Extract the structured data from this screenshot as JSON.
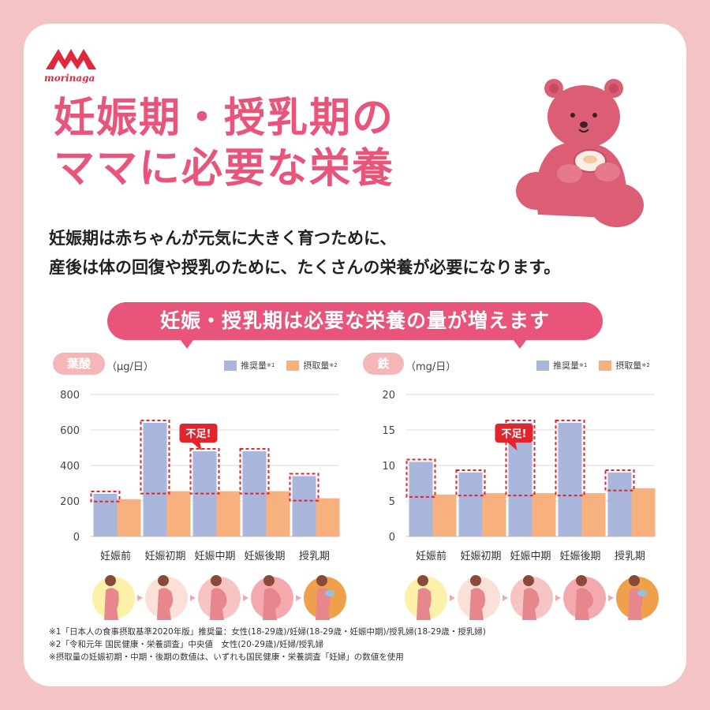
{
  "brand": {
    "name": "morinaga",
    "color": "#e0283c"
  },
  "title": {
    "line1": "妊娠期・授乳期の",
    "line2": "ママに必要な栄養"
  },
  "intro": {
    "line1": "妊娠期は赤ちゃんが元気に大きく育つために、",
    "line2": "産後は体の回復や授乳のために、たくさんの栄養が必要になります。"
  },
  "banner": "妊娠・授乳期は必要な栄養の量が増えます",
  "colors": {
    "accent": "#e9557a",
    "recommended": "#aab6db",
    "intake": "#f7b07e",
    "shortage": "#e2252b"
  },
  "legend": {
    "recommended": "推奨量",
    "recommended_note": "※1",
    "intake": "摂取量",
    "intake_note": "※2"
  },
  "shortage_label": "不足!",
  "stage_icons": [
    "pregnant-woman-early-icon",
    "pregnant-woman-first-trimester-icon",
    "pregnant-woman-mid-icon",
    "pregnant-woman-late-icon",
    "nursing-mother-icon"
  ],
  "chart_data": [
    {
      "type": "bar",
      "title": "葉酸",
      "unit": "（μg/日）",
      "categories": [
        "妊娠前",
        "妊娠初期",
        "妊娠中期",
        "妊娠後期",
        "授乳期"
      ],
      "ylim": [
        0,
        800
      ],
      "yticks": [
        "0",
        "200",
        "400",
        "600",
        "800"
      ],
      "series": [
        {
          "name": "推奨量",
          "values": [
            240,
            640,
            480,
            480,
            340
          ]
        },
        {
          "name": "摂取量",
          "values": [
            210,
            255,
            255,
            255,
            215
          ]
        }
      ],
      "grid": true,
      "legend": "top-right"
    },
    {
      "type": "bar",
      "title": "鉄",
      "unit": "（mg/日）",
      "categories": [
        "妊娠前",
        "妊娠初期",
        "妊娠中期",
        "妊娠後期",
        "授乳期"
      ],
      "ylim": [
        0,
        20
      ],
      "yticks": [
        "0",
        "5",
        "10",
        "15",
        "20"
      ],
      "series": [
        {
          "name": "推奨量",
          "values": [
            10.5,
            9.0,
            16.0,
            16.0,
            9.0
          ]
        },
        {
          "name": "摂取量",
          "values": [
            5.9,
            6.1,
            6.1,
            6.1,
            6.8
          ]
        }
      ],
      "grid": true,
      "legend": "top-right"
    }
  ],
  "notes": [
    "※1「日本人の食事摂取基準2020年版」推奨量：女性(18-29歳)/妊婦(18-29歳・妊娠中期)/授乳婦(18-29歳・授乳婦)",
    "※2「令和元年 国民健康・栄養調査」中央値　女性(20-29歳)/妊婦/授乳婦",
    "※摂取量の妊娠初期・中期・後期の数値は、いずれも国民健康・栄養調査「妊婦」の数値を使用"
  ]
}
